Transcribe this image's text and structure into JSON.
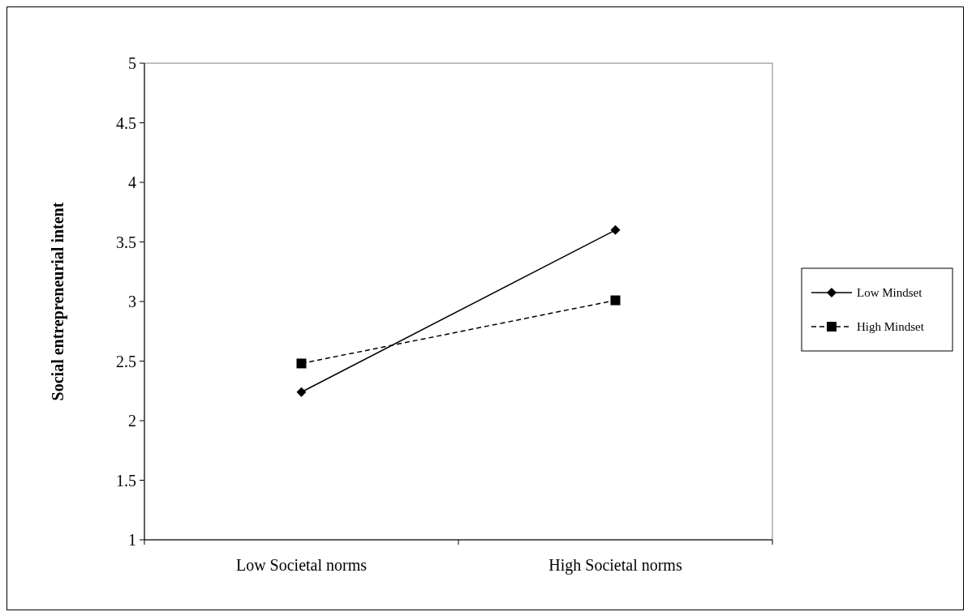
{
  "chart_data": {
    "type": "line",
    "ylabel": "Social entrepreneurial intent",
    "categories": [
      "Low Societal norms",
      "High Societal norms"
    ],
    "series": [
      {
        "name": "Low Mindset",
        "color": "#000000",
        "values": [
          2.24,
          3.6
        ],
        "marker": "diamond",
        "line_style": "solid"
      },
      {
        "name": "High Mindset",
        "color": "#000000",
        "values": [
          2.48,
          3.01
        ],
        "marker": "square",
        "line_style": "dashed"
      }
    ],
    "ylim": [
      1,
      5
    ],
    "yticks": [
      1,
      1.5,
      2,
      2.5,
      3,
      3.5,
      4,
      4.5,
      5
    ],
    "grid": false,
    "legend": "right"
  }
}
